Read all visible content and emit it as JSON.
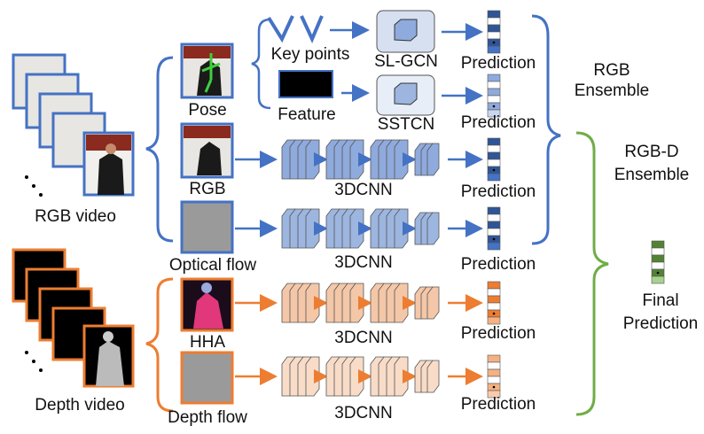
{
  "inputs": {
    "rgb_video": "RGB video",
    "depth_video": "Depth video"
  },
  "modalities": [
    "Pose",
    "RGB",
    "Optical flow",
    "HHA",
    "Depth flow"
  ],
  "pose_branches": {
    "keypoints": "Key points",
    "feature": "Feature"
  },
  "models": [
    "SL-GCN",
    "SSTCN",
    "3DCNN",
    "3DCNN",
    "3DCNN",
    "3DCNN"
  ],
  "predictions": [
    "Prediction",
    "Prediction",
    "Prediction",
    "Prediction",
    "Prediction",
    "Prediction"
  ],
  "ensembles": {
    "rgb": [
      "RGB",
      "Ensemble"
    ],
    "rgbd": [
      "RGB-D",
      "Ensemble"
    ],
    "final": [
      "Final",
      "Prediction"
    ]
  }
}
